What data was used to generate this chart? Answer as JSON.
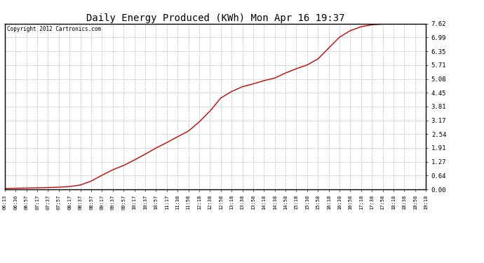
{
  "title": "Daily Energy Produced (KWh) Mon Apr 16 19:37",
  "copyright_text": "Copyright 2012 Cartronics.com",
  "line_color": "#cc0000",
  "bg_color": "#ffffff",
  "plot_bg_color": "#ffffff",
  "grid_color": "#bbbbbb",
  "yticks": [
    0.0,
    0.64,
    1.27,
    1.91,
    2.54,
    3.17,
    3.81,
    4.45,
    5.08,
    5.71,
    6.35,
    6.99,
    7.62
  ],
  "ylim": [
    0.0,
    7.62
  ],
  "x_labels": [
    "06:13",
    "06:36",
    "06:57",
    "07:17",
    "07:37",
    "07:57",
    "08:17",
    "08:37",
    "08:57",
    "09:17",
    "09:37",
    "09:57",
    "10:17",
    "10:37",
    "10:57",
    "11:17",
    "11:38",
    "11:58",
    "12:18",
    "12:38",
    "12:58",
    "13:18",
    "13:38",
    "13:58",
    "14:18",
    "14:38",
    "14:58",
    "15:18",
    "15:38",
    "15:58",
    "16:18",
    "16:38",
    "16:58",
    "17:18",
    "17:38",
    "17:58",
    "18:18",
    "18:38",
    "18:58",
    "19:18"
  ],
  "curve_y": [
    0.04,
    0.05,
    0.06,
    0.07,
    0.08,
    0.1,
    0.13,
    0.2,
    0.38,
    0.65,
    0.9,
    1.1,
    1.35,
    1.62,
    1.9,
    2.15,
    2.42,
    2.68,
    3.1,
    3.6,
    4.2,
    4.5,
    4.72,
    4.85,
    5.0,
    5.12,
    5.35,
    5.55,
    5.72,
    6.0,
    6.5,
    7.0,
    7.3,
    7.48,
    7.57,
    7.6,
    7.62,
    7.62,
    7.62,
    7.62
  ],
  "figwidth": 6.9,
  "figheight": 3.75,
  "dpi": 100
}
